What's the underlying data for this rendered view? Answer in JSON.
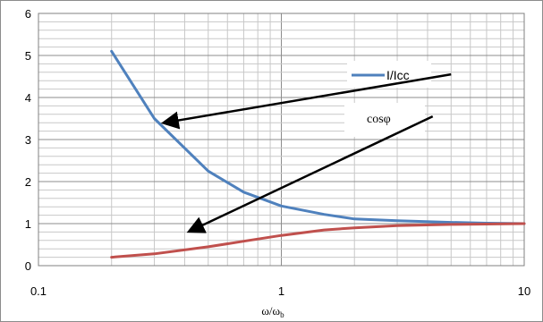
{
  "chart_data": {
    "type": "line",
    "x_scale": "log",
    "xlim": [
      0.1,
      10
    ],
    "ylim": [
      0,
      6
    ],
    "x_ticks": [
      "0.1",
      "1",
      "10"
    ],
    "y_ticks": [
      "0",
      "1",
      "2",
      "3",
      "4",
      "5",
      "6"
    ],
    "xlabel_main": "ω/ω",
    "xlabel_sub": "b",
    "ylabel": "",
    "grid": true,
    "legend_position": "top-right",
    "series": [
      {
        "name": "I/Icc",
        "color": "#4F81BD",
        "x": [
          0.2,
          0.3,
          0.5,
          0.7,
          1.0,
          1.5,
          2.0,
          3.0,
          5.0,
          7.0,
          10.0
        ],
        "y": [
          5.1,
          3.5,
          2.25,
          1.75,
          1.42,
          1.22,
          1.11,
          1.07,
          1.03,
          1.01,
          1.0
        ]
      },
      {
        "name": "cosφ",
        "color": "#C0504D",
        "x": [
          0.2,
          0.3,
          0.5,
          0.7,
          1.0,
          1.5,
          2.0,
          3.0,
          5.0,
          7.0,
          10.0
        ],
        "y": [
          0.2,
          0.28,
          0.45,
          0.58,
          0.72,
          0.85,
          0.9,
          0.95,
          0.98,
          0.99,
          1.0
        ]
      }
    ],
    "annotations": [
      {
        "text": "I/Icc",
        "arrow_from": [
          5.0,
          4.55
        ],
        "arrow_to": [
          0.33,
          3.4
        ]
      },
      {
        "text": "cosφ",
        "arrow_from": [
          4.2,
          3.55
        ],
        "arrow_to": [
          0.42,
          0.82
        ]
      }
    ]
  }
}
